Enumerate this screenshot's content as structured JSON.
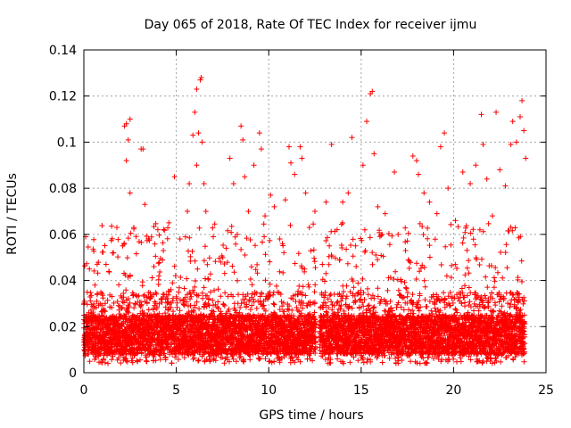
{
  "chart_data": {
    "type": "scatter",
    "title": "Day 065 of 2018, Rate Of TEC Index for receiver ijmu",
    "xlabel": "GPS time / hours",
    "ylabel": "ROTI / TECUs",
    "xlim": [
      0,
      25
    ],
    "ylim": [
      0,
      0.14
    ],
    "x_ticks": [
      "0",
      "5",
      "10",
      "15",
      "20",
      "25"
    ],
    "y_ticks": [
      "0",
      "0.02",
      "0.04",
      "0.06",
      "0.08",
      "0.1",
      "0.12",
      "0.14"
    ],
    "x_tick_values": [
      0,
      5,
      10,
      15,
      20,
      25
    ],
    "y_tick_values": [
      0,
      0.02,
      0.04,
      0.06,
      0.08,
      0.1,
      0.12,
      0.14
    ],
    "grid": true,
    "marker": "plus",
    "color": "#ff0000",
    "data_gap_hours": [
      12.55,
      12.75
    ],
    "series": [
      {
        "name": "ROTI",
        "points": [
          {
            "x": 0.1,
            "y": 0.059
          },
          {
            "x": 0.3,
            "y": 0.045
          },
          {
            "x": 0.6,
            "y": 0.038
          },
          {
            "x": 1.2,
            "y": 0.047
          },
          {
            "x": 1.6,
            "y": 0.052
          },
          {
            "x": 2.1,
            "y": 0.055
          },
          {
            "x": 2.2,
            "y": 0.107
          },
          {
            "x": 2.3,
            "y": 0.108
          },
          {
            "x": 2.5,
            "y": 0.11
          },
          {
            "x": 2.4,
            "y": 0.101
          },
          {
            "x": 2.3,
            "y": 0.092
          },
          {
            "x": 2.5,
            "y": 0.078
          },
          {
            "x": 2.7,
            "y": 0.063
          },
          {
            "x": 3.1,
            "y": 0.097
          },
          {
            "x": 3.2,
            "y": 0.097
          },
          {
            "x": 3.3,
            "y": 0.073
          },
          {
            "x": 3.5,
            "y": 0.058
          },
          {
            "x": 4.0,
            "y": 0.062
          },
          {
            "x": 4.3,
            "y": 0.053
          },
          {
            "x": 4.6,
            "y": 0.065
          },
          {
            "x": 4.9,
            "y": 0.085
          },
          {
            "x": 5.2,
            "y": 0.058
          },
          {
            "x": 5.6,
            "y": 0.07
          },
          {
            "x": 5.7,
            "y": 0.082
          },
          {
            "x": 5.9,
            "y": 0.103
          },
          {
            "x": 6.0,
            "y": 0.113
          },
          {
            "x": 6.1,
            "y": 0.123
          },
          {
            "x": 6.1,
            "y": 0.09
          },
          {
            "x": 6.2,
            "y": 0.104
          },
          {
            "x": 6.3,
            "y": 0.127
          },
          {
            "x": 6.35,
            "y": 0.128
          },
          {
            "x": 6.4,
            "y": 0.1
          },
          {
            "x": 6.5,
            "y": 0.082
          },
          {
            "x": 6.6,
            "y": 0.07
          },
          {
            "x": 7.0,
            "y": 0.059
          },
          {
            "x": 7.4,
            "y": 0.048
          },
          {
            "x": 7.7,
            "y": 0.054
          },
          {
            "x": 7.9,
            "y": 0.093
          },
          {
            "x": 8.1,
            "y": 0.082
          },
          {
            "x": 8.3,
            "y": 0.06
          },
          {
            "x": 8.5,
            "y": 0.107
          },
          {
            "x": 8.6,
            "y": 0.101
          },
          {
            "x": 8.7,
            "y": 0.085
          },
          {
            "x": 8.9,
            "y": 0.07
          },
          {
            "x": 9.2,
            "y": 0.09
          },
          {
            "x": 9.5,
            "y": 0.104
          },
          {
            "x": 9.6,
            "y": 0.097
          },
          {
            "x": 9.8,
            "y": 0.068
          },
          {
            "x": 10.1,
            "y": 0.077
          },
          {
            "x": 10.3,
            "y": 0.072
          },
          {
            "x": 10.6,
            "y": 0.058
          },
          {
            "x": 10.9,
            "y": 0.075
          },
          {
            "x": 11.1,
            "y": 0.098
          },
          {
            "x": 11.2,
            "y": 0.091
          },
          {
            "x": 11.4,
            "y": 0.086
          },
          {
            "x": 11.7,
            "y": 0.098
          },
          {
            "x": 11.8,
            "y": 0.093
          },
          {
            "x": 12.0,
            "y": 0.078
          },
          {
            "x": 12.2,
            "y": 0.063
          },
          {
            "x": 12.5,
            "y": 0.07
          },
          {
            "x": 12.9,
            "y": 0.047
          },
          {
            "x": 13.1,
            "y": 0.074
          },
          {
            "x": 13.4,
            "y": 0.099
          },
          {
            "x": 13.7,
            "y": 0.062
          },
          {
            "x": 14.0,
            "y": 0.074
          },
          {
            "x": 14.3,
            "y": 0.078
          },
          {
            "x": 14.5,
            "y": 0.102
          },
          {
            "x": 14.7,
            "y": 0.055
          },
          {
            "x": 15.1,
            "y": 0.09
          },
          {
            "x": 15.3,
            "y": 0.109
          },
          {
            "x": 15.5,
            "y": 0.121
          },
          {
            "x": 15.6,
            "y": 0.122
          },
          {
            "x": 15.7,
            "y": 0.095
          },
          {
            "x": 15.9,
            "y": 0.072
          },
          {
            "x": 16.3,
            "y": 0.069
          },
          {
            "x": 16.8,
            "y": 0.087
          },
          {
            "x": 17.0,
            "y": 0.06
          },
          {
            "x": 17.4,
            "y": 0.053
          },
          {
            "x": 17.8,
            "y": 0.094
          },
          {
            "x": 18.0,
            "y": 0.092
          },
          {
            "x": 18.1,
            "y": 0.086
          },
          {
            "x": 18.4,
            "y": 0.078
          },
          {
            "x": 18.7,
            "y": 0.074
          },
          {
            "x": 19.1,
            "y": 0.069
          },
          {
            "x": 19.3,
            "y": 0.098
          },
          {
            "x": 19.5,
            "y": 0.104
          },
          {
            "x": 19.7,
            "y": 0.08
          },
          {
            "x": 20.1,
            "y": 0.066
          },
          {
            "x": 20.5,
            "y": 0.087
          },
          {
            "x": 20.9,
            "y": 0.082
          },
          {
            "x": 21.2,
            "y": 0.09
          },
          {
            "x": 21.5,
            "y": 0.112
          },
          {
            "x": 21.6,
            "y": 0.099
          },
          {
            "x": 21.8,
            "y": 0.084
          },
          {
            "x": 22.1,
            "y": 0.068
          },
          {
            "x": 22.3,
            "y": 0.113
          },
          {
            "x": 22.5,
            "y": 0.088
          },
          {
            "x": 22.8,
            "y": 0.081
          },
          {
            "x": 23.1,
            "y": 0.099
          },
          {
            "x": 23.2,
            "y": 0.109
          },
          {
            "x": 23.4,
            "y": 0.1
          },
          {
            "x": 23.6,
            "y": 0.111
          },
          {
            "x": 23.7,
            "y": 0.118
          },
          {
            "x": 23.8,
            "y": 0.105
          },
          {
            "x": 23.9,
            "y": 0.093
          }
        ],
        "bulk_summary": {
          "description": "dense band of samples between 0 and 12.55 h and between 12.75 and 23.85 h",
          "typical_y_range": [
            0.004,
            0.035
          ],
          "core_y_range": [
            0.008,
            0.025
          ],
          "sample_interval_hours": 0.0167
        }
      }
    ]
  }
}
